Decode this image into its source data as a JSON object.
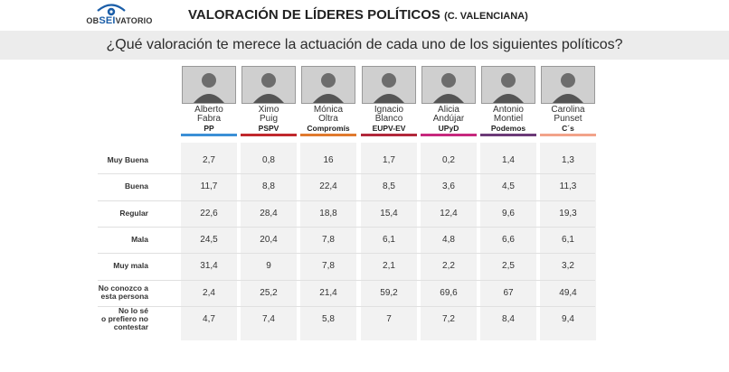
{
  "logo": {
    "prefix": "OB",
    "accent": "SEI",
    "suffix": "VATORIO"
  },
  "header": {
    "title": "VALORACIÓN DE LÍDERES POLÍTICOS",
    "subtitle": "(C. VALENCIANA)",
    "question": "¿Qué valoración te merece la actuación de cada uno de los siguientes políticos?"
  },
  "candidates": [
    {
      "name_line1": "Alberto",
      "name_line2": "Fabra",
      "party": "PP",
      "color": "#3b8fd6"
    },
    {
      "name_line1": "Ximo",
      "name_line2": "Puig",
      "party": "PSPV",
      "color": "#c0282d"
    },
    {
      "name_line1": "Mónica",
      "name_line2": "Oltra",
      "party": "Compromís",
      "color": "#e07a2e"
    },
    {
      "name_line1": "Ignacio",
      "name_line2": "Blanco",
      "party": "EUPV-EV",
      "color": "#b2283b"
    },
    {
      "name_line1": "Alicia",
      "name_line2": "Andújar",
      "party": "UPyD",
      "color": "#c7287e"
    },
    {
      "name_line1": "Antonio",
      "name_line2": "Montiel",
      "party": "Podemos",
      "color": "#6c3a78"
    },
    {
      "name_line1": "Carolina",
      "name_line2": "Punset",
      "party": "C´s",
      "color": "#f2a38a"
    }
  ],
  "chart_data": {
    "type": "table",
    "columns": [
      "Alberto Fabra PP",
      "Ximo Puig PSPV",
      "Mónica Oltra Compromís",
      "Ignacio Blanco EUPV-EV",
      "Alicia Andújar UPyD",
      "Antonio Montiel Podemos",
      "Carolina Punset C´s"
    ],
    "rows": [
      {
        "label": [
          "Muy Buena"
        ],
        "values": [
          "2,7",
          "0,8",
          "16",
          "1,7",
          "0,2",
          "1,4",
          "1,3"
        ]
      },
      {
        "label": [
          "Buena"
        ],
        "values": [
          "11,7",
          "8,8",
          "22,4",
          "8,5",
          "3,6",
          "4,5",
          "11,3"
        ]
      },
      {
        "label": [
          "Regular"
        ],
        "values": [
          "22,6",
          "28,4",
          "18,8",
          "15,4",
          "12,4",
          "9,6",
          "19,3"
        ]
      },
      {
        "label": [
          "Mala"
        ],
        "values": [
          "24,5",
          "20,4",
          "7,8",
          "6,1",
          "4,8",
          "6,6",
          "6,1"
        ]
      },
      {
        "label": [
          "Muy mala"
        ],
        "values": [
          "31,4",
          "9",
          "7,8",
          "2,1",
          "2,2",
          "2,5",
          "3,2"
        ]
      },
      {
        "label": [
          "No conozco a",
          "esta persona"
        ],
        "values": [
          "2,4",
          "25,2",
          "21,4",
          "59,2",
          "69,6",
          "67",
          "49,4"
        ]
      },
      {
        "label": [
          "No lo sé",
          "o prefiero no",
          "contestar"
        ],
        "values": [
          "4,7",
          "7,4",
          "5,8",
          "7",
          "7,2",
          "8,4",
          "9,4"
        ]
      }
    ]
  }
}
